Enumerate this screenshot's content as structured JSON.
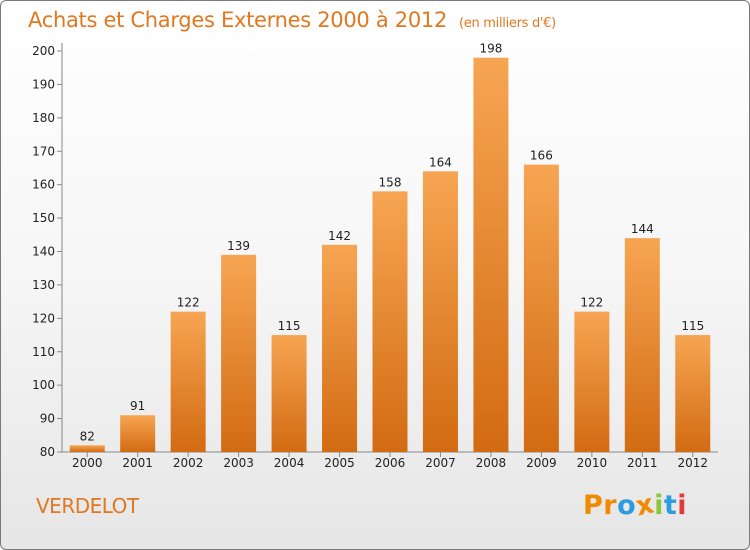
{
  "header": {
    "title": "Achats et Charges Externes 2000 à 2012",
    "unit": "(en milliers d'€)"
  },
  "footer": {
    "commune": "VERDELOT",
    "logo": [
      "P",
      "r",
      "o",
      "x",
      "i",
      "t",
      "i"
    ]
  },
  "colors": {
    "accent": "#e07820",
    "bar_top": "#f7a553",
    "bar_bottom": "#d26b12",
    "logo_letters": [
      "#f08a00",
      "#f08a00",
      "#2c9be0",
      "#f08a00",
      "#8cc63f",
      "#2c9be0",
      "#e03a3a"
    ]
  },
  "chart_data": {
    "type": "bar",
    "title": "Achats et Charges Externes 2000 à 2012",
    "subtitle": "(en milliers d'€)",
    "xlabel": "",
    "ylabel": "",
    "categories": [
      "2000",
      "2001",
      "2002",
      "2003",
      "2004",
      "2005",
      "2006",
      "2007",
      "2008",
      "2009",
      "2010",
      "2011",
      "2012"
    ],
    "values": [
      82,
      91,
      122,
      139,
      115,
      142,
      158,
      164,
      198,
      166,
      122,
      144,
      115
    ],
    "value_labels": [
      "82",
      "91",
      "122",
      "139",
      "115",
      "142",
      "158",
      "164",
      "198",
      "166",
      "122",
      "144",
      "115"
    ],
    "ylim": [
      80,
      200
    ],
    "yticks": [
      80,
      90,
      100,
      110,
      120,
      130,
      140,
      150,
      160,
      170,
      180,
      190,
      200
    ],
    "ytick_labels": [
      "80",
      "90",
      "100",
      "110",
      "120",
      "130",
      "140",
      "150",
      "160",
      "170",
      "180",
      "190",
      "200"
    ],
    "grid": false,
    "legend": "none"
  }
}
